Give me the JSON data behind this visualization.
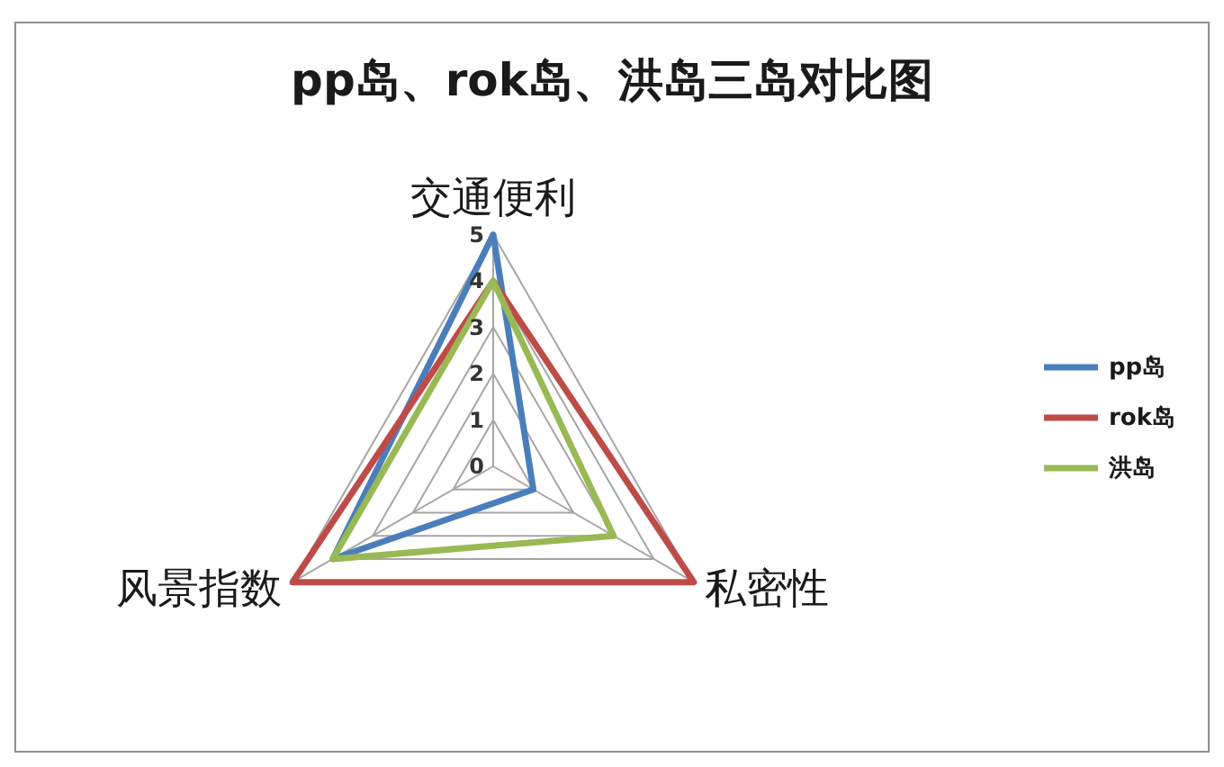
{
  "chart_data": {
    "type": "radar",
    "title": "pp岛、rok岛、洪岛三岛对比图",
    "categories": [
      "交通便利",
      "私密性",
      "风景指数"
    ],
    "series": [
      {
        "name": "pp岛",
        "color": "#4a7ebb",
        "values": [
          5,
          1,
          4
        ]
      },
      {
        "name": "rok岛",
        "color": "#be4b48",
        "values": [
          4,
          5,
          5
        ]
      },
      {
        "name": "洪岛",
        "color": "#98b954",
        "values": [
          4,
          3,
          4
        ]
      }
    ],
    "ylim": [
      0,
      5
    ],
    "yticks": [
      0,
      1,
      2,
      3,
      4,
      5
    ],
    "grid": true,
    "legend": "right"
  }
}
